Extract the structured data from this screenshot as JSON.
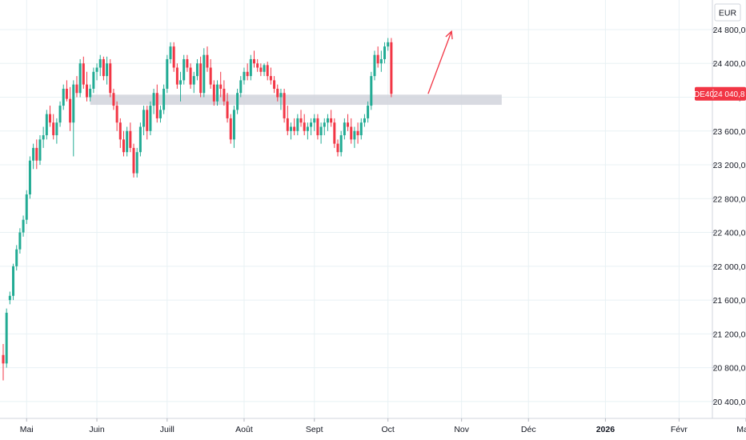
{
  "chart_data": {
    "type": "candlestick",
    "symbol": "DE40",
    "currency": "EUR",
    "last_price": "24 040,8",
    "colors": {
      "up": "#22ab94",
      "down": "#f23645",
      "grid": "#e8f1f4",
      "zone": "#d1d4dc",
      "arrow": "#f23645",
      "axis_text": "#131722"
    },
    "ylim": [
      20200,
      25150
    ],
    "y_ticks": [
      "20 400,0",
      "20 800,0",
      "21 200,0",
      "21 600,0",
      "22 000,0",
      "22 400,0",
      "22 800,0",
      "23 200,0",
      "23 600,0",
      "24 000,0",
      "24 400,0",
      "24 800,0"
    ],
    "y_tick_values": [
      20400,
      20800,
      21200,
      21600,
      22000,
      22400,
      22800,
      23200,
      23600,
      24000,
      24400,
      24800
    ],
    "x_ticks": [
      {
        "label": "Mai",
        "index": 7,
        "bold": false
      },
      {
        "label": "Juin",
        "index": 28,
        "bold": false
      },
      {
        "label": "Juill",
        "index": 49,
        "bold": false
      },
      {
        "label": "Août",
        "index": 72,
        "bold": false
      },
      {
        "label": "Sept",
        "index": 93,
        "bold": false
      },
      {
        "label": "Oct",
        "index": 115,
        "bold": false
      },
      {
        "label": "Nov",
        "index": 137,
        "bold": false
      },
      {
        "label": "Déc",
        "index": 157,
        "bold": false
      },
      {
        "label": "2026",
        "index": 180,
        "bold": true
      },
      {
        "label": "Févr",
        "index": 202,
        "bold": false
      },
      {
        "label": "Mars",
        "index": 222,
        "bold": false
      }
    ],
    "support_zone": {
      "from_index": 26,
      "to_index": 149,
      "low": 23910,
      "high": 24030
    },
    "projection_arrow": {
      "from_index": 127,
      "from_price": 24040,
      "to_index": 134,
      "to_price": 24780
    },
    "candles": [
      [
        20950,
        21080,
        20650,
        20850
      ],
      [
        20850,
        21500,
        20800,
        21450
      ],
      [
        21600,
        21700,
        21550,
        21650
      ],
      [
        21650,
        22030,
        21600,
        22000
      ],
      [
        22000,
        22250,
        21950,
        22200
      ],
      [
        22200,
        22450,
        22150,
        22400
      ],
      [
        22400,
        22600,
        22350,
        22550
      ],
      [
        22550,
        22900,
        22500,
        22850
      ],
      [
        22850,
        23300,
        22800,
        23250
      ],
      [
        23250,
        23450,
        23150,
        23400
      ],
      [
        23400,
        23500,
        23150,
        23250
      ],
      [
        23250,
        23550,
        23200,
        23500
      ],
      [
        23500,
        23650,
        23400,
        23550
      ],
      [
        23550,
        23850,
        23500,
        23800
      ],
      [
        23800,
        23900,
        23650,
        23700
      ],
      [
        23700,
        23800,
        23500,
        23550
      ],
      [
        23550,
        23750,
        23450,
        23700
      ],
      [
        23700,
        23950,
        23650,
        23900
      ],
      [
        23900,
        24150,
        23850,
        24100
      ],
      [
        24100,
        24200,
        23950,
        23980
      ],
      [
        23980,
        24120,
        23600,
        23700
      ],
      [
        23700,
        24200,
        23300,
        24150
      ],
      [
        24150,
        24250,
        24000,
        24050
      ],
      [
        24050,
        24450,
        24000,
        24400
      ],
      [
        24400,
        24480,
        24100,
        24150
      ],
      [
        24150,
        24300,
        23950,
        24000
      ],
      [
        24000,
        24150,
        23950,
        24100
      ],
      [
        24100,
        24350,
        24050,
        24300
      ],
      [
        24300,
        24400,
        24200,
        24350
      ],
      [
        24350,
        24500,
        24250,
        24450
      ],
      [
        24450,
        24480,
        24200,
        24250
      ],
      [
        24250,
        24480,
        24150,
        24400
      ],
      [
        24400,
        24450,
        24000,
        24050
      ],
      [
        24050,
        24100,
        23850,
        23900
      ],
      [
        23900,
        23950,
        23600,
        23700
      ],
      [
        23700,
        23750,
        23400,
        23500
      ],
      [
        23500,
        23600,
        23300,
        23350
      ],
      [
        23350,
        23650,
        23300,
        23600
      ],
      [
        23600,
        23700,
        23350,
        23400
      ],
      [
        23400,
        23450,
        23050,
        23100
      ],
      [
        23100,
        23400,
        23050,
        23350
      ],
      [
        23350,
        23700,
        23300,
        23650
      ],
      [
        23650,
        23900,
        23550,
        23850
      ],
      [
        23850,
        23900,
        23500,
        23600
      ],
      [
        23600,
        23950,
        23550,
        23900
      ],
      [
        23900,
        24100,
        23800,
        24050
      ],
      [
        24050,
        24150,
        23700,
        23750
      ],
      [
        23750,
        23900,
        23700,
        23850
      ],
      [
        23850,
        24150,
        23800,
        24100
      ],
      [
        24100,
        24500,
        24050,
        24450
      ],
      [
        24450,
        24650,
        24400,
        24600
      ],
      [
        24600,
        24650,
        24300,
        24350
      ],
      [
        24350,
        24400,
        24100,
        24150
      ],
      [
        24150,
        24300,
        23950,
        24200
      ],
      [
        24200,
        24500,
        24150,
        24450
      ],
      [
        24450,
        24500,
        24300,
        24350
      ],
      [
        24350,
        24400,
        24100,
        24150
      ],
      [
        24150,
        24300,
        24050,
        24250
      ],
      [
        24250,
        24450,
        24200,
        24400
      ],
      [
        24400,
        24480,
        24000,
        24050
      ],
      [
        24050,
        24580,
        24000,
        24500
      ],
      [
        24500,
        24600,
        24300,
        24350
      ],
      [
        24350,
        24450,
        24100,
        24150
      ],
      [
        24150,
        24200,
        23900,
        23950
      ],
      [
        23950,
        24200,
        23900,
        24150
      ],
      [
        24150,
        24300,
        24000,
        24100
      ],
      [
        24100,
        24200,
        23900,
        23950
      ],
      [
        23950,
        24050,
        23700,
        23750
      ],
      [
        23750,
        23800,
        23450,
        23500
      ],
      [
        23500,
        23900,
        23400,
        23850
      ],
      [
        23850,
        24100,
        23800,
        24050
      ],
      [
        24050,
        24250,
        24000,
        24200
      ],
      [
        24200,
        24350,
        24150,
        24300
      ],
      [
        24300,
        24400,
        24200,
        24250
      ],
      [
        24250,
        24500,
        24200,
        24450
      ],
      [
        24450,
        24550,
        24350,
        24400
      ],
      [
        24400,
        24450,
        24300,
        24350
      ],
      [
        24350,
        24400,
        24250,
        24300
      ],
      [
        24300,
        24400,
        24250,
        24380
      ],
      [
        24380,
        24420,
        24200,
        24250
      ],
      [
        24250,
        24350,
        24150,
        24200
      ],
      [
        24200,
        24250,
        24050,
        24100
      ],
      [
        24100,
        24150,
        23950,
        24000
      ],
      [
        24000,
        24100,
        23850,
        24050
      ],
      [
        24050,
        24100,
        23700,
        23750
      ],
      [
        23750,
        23900,
        23550,
        23600
      ],
      [
        23600,
        23700,
        23500,
        23650
      ],
      [
        23650,
        23750,
        23550,
        23600
      ],
      [
        23600,
        23800,
        23550,
        23750
      ],
      [
        23750,
        23850,
        23650,
        23700
      ],
      [
        23700,
        23800,
        23550,
        23600
      ],
      [
        23600,
        23700,
        23500,
        23650
      ],
      [
        23650,
        23750,
        23550,
        23700
      ],
      [
        23700,
        23800,
        23600,
        23750
      ],
      [
        23750,
        23800,
        23500,
        23550
      ],
      [
        23550,
        23700,
        23450,
        23650
      ],
      [
        23650,
        23750,
        23550,
        23700
      ],
      [
        23700,
        23800,
        23600,
        23750
      ],
      [
        23750,
        23850,
        23650,
        23700
      ],
      [
        23700,
        23750,
        23400,
        23450
      ],
      [
        23450,
        23500,
        23300,
        23350
      ],
      [
        23350,
        23600,
        23300,
        23550
      ],
      [
        23550,
        23750,
        23500,
        23700
      ],
      [
        23700,
        23800,
        23600,
        23650
      ],
      [
        23650,
        23750,
        23450,
        23500
      ],
      [
        23500,
        23650,
        23400,
        23600
      ],
      [
        23600,
        23700,
        23450,
        23550
      ],
      [
        23550,
        23750,
        23500,
        23700
      ],
      [
        23700,
        23800,
        23650,
        23750
      ],
      [
        23750,
        23950,
        23700,
        23900
      ],
      [
        23900,
        24300,
        23850,
        24250
      ],
      [
        24250,
        24550,
        24200,
        24500
      ],
      [
        24500,
        24600,
        24350,
        24400
      ],
      [
        24400,
        24550,
        24300,
        24450
      ],
      [
        24450,
        24650,
        24400,
        24600
      ],
      [
        24600,
        24700,
        24550,
        24650
      ],
      [
        24650,
        24700,
        24000,
        24040
      ]
    ]
  }
}
